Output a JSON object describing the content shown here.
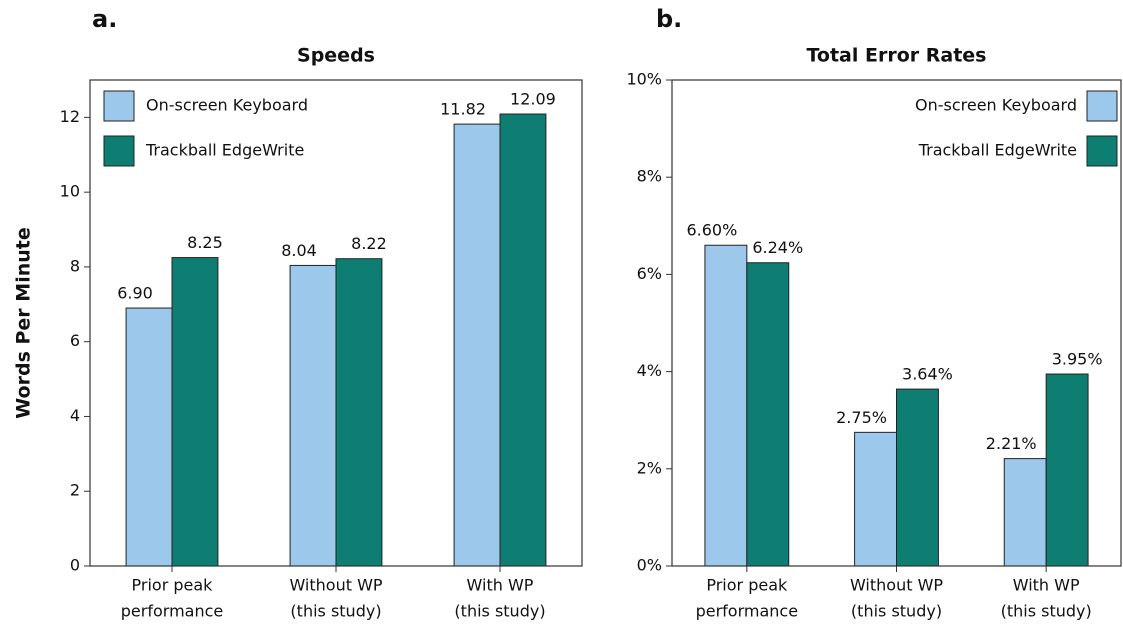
{
  "chart_data": [
    {
      "type": "bar",
      "panel_label": "a.",
      "title": "Speeds",
      "y_label": "Words Per Minute",
      "categories": [
        [
          "Prior peak",
          "performance"
        ],
        [
          "Without WP",
          "(this study)"
        ],
        [
          "With WP",
          "(this study)"
        ]
      ],
      "series": [
        {
          "name": "On-screen Keyboard",
          "color": "#9cc8ec",
          "values": [
            6.9,
            8.04,
            11.82
          ],
          "value_labels": [
            "6.90",
            "8.04",
            "11.82"
          ]
        },
        {
          "name": "Trackball EdgeWrite",
          "color": "#0e7d72",
          "values": [
            8.25,
            8.22,
            12.09
          ],
          "value_labels": [
            "8.25",
            "8.22",
            "12.09"
          ]
        }
      ],
      "ylim": [
        0,
        13
      ],
      "yticks": [
        0,
        2,
        4,
        6,
        8,
        10,
        12
      ],
      "legend": "upper left"
    },
    {
      "type": "bar",
      "panel_label": "b.",
      "title": "Total Error Rates",
      "categories": [
        [
          "Prior peak",
          "performance"
        ],
        [
          "Without WP",
          "(this study)"
        ],
        [
          "With WP",
          "(this study)"
        ]
      ],
      "series": [
        {
          "name": "On-screen Keyboard",
          "color": "#9cc8ec",
          "values": [
            6.6,
            2.75,
            2.21
          ],
          "value_labels": [
            "6.60%",
            "2.75%",
            "2.21%"
          ]
        },
        {
          "name": "Trackball EdgeWrite",
          "color": "#0e7d72",
          "values": [
            6.24,
            3.64,
            3.95
          ],
          "value_labels": [
            "6.24%",
            "3.64%",
            "3.95%"
          ]
        }
      ],
      "ylim": [
        0,
        10
      ],
      "yticks": [
        {
          "value": 0,
          "label": "0%"
        },
        {
          "value": 2,
          "label": "2%"
        },
        {
          "value": 4,
          "label": "4%"
        },
        {
          "value": 6,
          "label": "6%"
        },
        {
          "value": 8,
          "label": "8%"
        },
        {
          "value": 10,
          "label": "10%"
        }
      ],
      "legend": "upper right"
    }
  ]
}
